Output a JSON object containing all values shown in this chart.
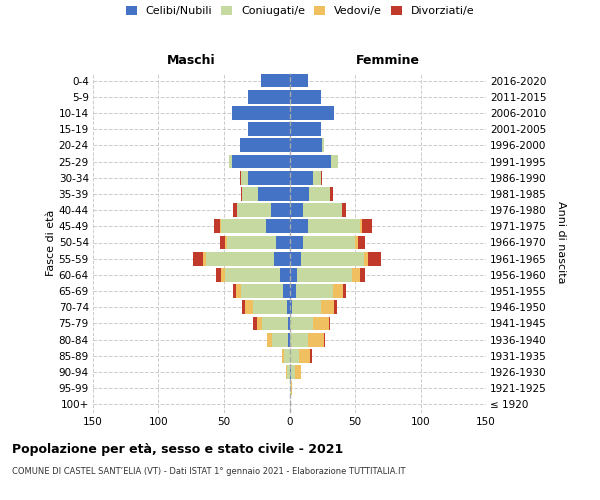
{
  "age_groups": [
    "100+",
    "95-99",
    "90-94",
    "85-89",
    "80-84",
    "75-79",
    "70-74",
    "65-69",
    "60-64",
    "55-59",
    "50-54",
    "45-49",
    "40-44",
    "35-39",
    "30-34",
    "25-29",
    "20-24",
    "15-19",
    "10-14",
    "5-9",
    "0-4"
  ],
  "birth_years": [
    "≤ 1920",
    "1921-1925",
    "1926-1930",
    "1931-1935",
    "1936-1940",
    "1941-1945",
    "1946-1950",
    "1951-1955",
    "1956-1960",
    "1961-1965",
    "1966-1970",
    "1971-1975",
    "1976-1980",
    "1981-1985",
    "1986-1990",
    "1991-1995",
    "1996-2000",
    "2001-2005",
    "2006-2010",
    "2011-2015",
    "2016-2020"
  ],
  "maschi": {
    "celibi": [
      0,
      0,
      0,
      0,
      1,
      1,
      2,
      5,
      7,
      12,
      10,
      18,
      14,
      24,
      32,
      44,
      38,
      32,
      44,
      32,
      22
    ],
    "coniugati": [
      0,
      0,
      2,
      4,
      12,
      20,
      26,
      32,
      42,
      52,
      38,
      34,
      26,
      12,
      5,
      2,
      0,
      0,
      0,
      0,
      0
    ],
    "vedovi": [
      0,
      0,
      1,
      2,
      4,
      4,
      6,
      4,
      3,
      2,
      1,
      1,
      0,
      0,
      0,
      0,
      0,
      0,
      0,
      0,
      0
    ],
    "divorziati": [
      0,
      0,
      0,
      0,
      0,
      3,
      2,
      2,
      4,
      8,
      4,
      5,
      3,
      1,
      1,
      0,
      0,
      0,
      0,
      0,
      0
    ]
  },
  "femmine": {
    "nubili": [
      0,
      0,
      1,
      0,
      0,
      0,
      2,
      5,
      6,
      9,
      10,
      14,
      10,
      15,
      18,
      32,
      25,
      24,
      34,
      24,
      14
    ],
    "coniugate": [
      0,
      1,
      3,
      7,
      14,
      18,
      22,
      28,
      42,
      48,
      40,
      40,
      30,
      16,
      6,
      5,
      1,
      0,
      0,
      0,
      0
    ],
    "vedove": [
      0,
      1,
      5,
      9,
      12,
      12,
      10,
      8,
      6,
      3,
      2,
      1,
      0,
      0,
      0,
      0,
      0,
      0,
      0,
      0,
      0
    ],
    "divorziate": [
      0,
      0,
      0,
      1,
      1,
      1,
      2,
      2,
      4,
      10,
      6,
      8,
      3,
      2,
      1,
      0,
      0,
      0,
      0,
      0,
      0
    ]
  },
  "colors": {
    "celibi": "#4472C4",
    "coniugati": "#c5d9a0",
    "vedovi": "#f0c060",
    "divorziati": "#c0392b"
  },
  "xlim": 150,
  "title": "Popolazione per età, sesso e stato civile - 2021",
  "subtitle": "COMUNE DI CASTEL SANT’ELIA (VT) - Dati ISTAT 1° gennaio 2021 - Elaborazione TUTTITALIA.IT",
  "ylabel_left": "Fasce di età",
  "ylabel_right": "Anni di nascita",
  "xlabel_maschi": "Maschi",
  "xlabel_femmine": "Femmine",
  "legend_labels": [
    "Celibi/Nubili",
    "Coniugati/e",
    "Vedovi/e",
    "Divorziati/e"
  ],
  "bg_color": "#ffffff",
  "grid_color": "#cccccc"
}
